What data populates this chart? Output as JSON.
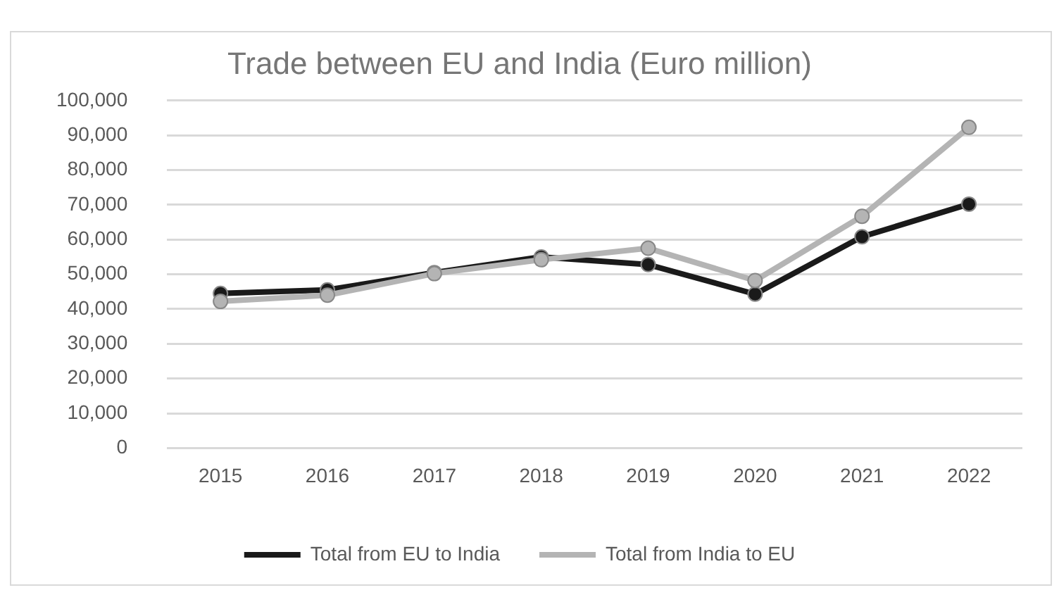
{
  "chart_data": {
    "type": "line",
    "title": "Trade between EU and India (Euro million)",
    "categories": [
      "2015",
      "2016",
      "2017",
      "2018",
      "2019",
      "2020",
      "2021",
      "2022"
    ],
    "series": [
      {
        "name": "Total from EU to India",
        "color": "#1a1a1a",
        "values": [
          44500,
          45500,
          50500,
          55000,
          52800,
          44300,
          60800,
          70200
        ]
      },
      {
        "name": "Total from India to EU",
        "color": "#b4b4b4",
        "values": [
          42200,
          44000,
          50200,
          54200,
          57500,
          48200,
          66700,
          92300
        ]
      }
    ],
    "ylim": [
      0,
      100000
    ],
    "yticks": [
      0,
      {
        "value": 10000,
        "label": "10,000"
      },
      {
        "value": 20000,
        "label": "20,000"
      },
      {
        "value": 30000,
        "label": "30,000"
      },
      {
        "value": 40000,
        "label": "40,000"
      },
      {
        "value": 50000,
        "label": "50,000"
      },
      {
        "value": 60000,
        "label": "60,000"
      },
      {
        "value": 70000,
        "label": "70,000"
      },
      {
        "value": 80000,
        "label": "80,000"
      },
      {
        "value": 90000,
        "label": "90,000"
      },
      {
        "value": 100000,
        "label": "100,000"
      }
    ],
    "grid": "y",
    "legend": "bottom",
    "marker": "circle",
    "line_style": "solid"
  }
}
